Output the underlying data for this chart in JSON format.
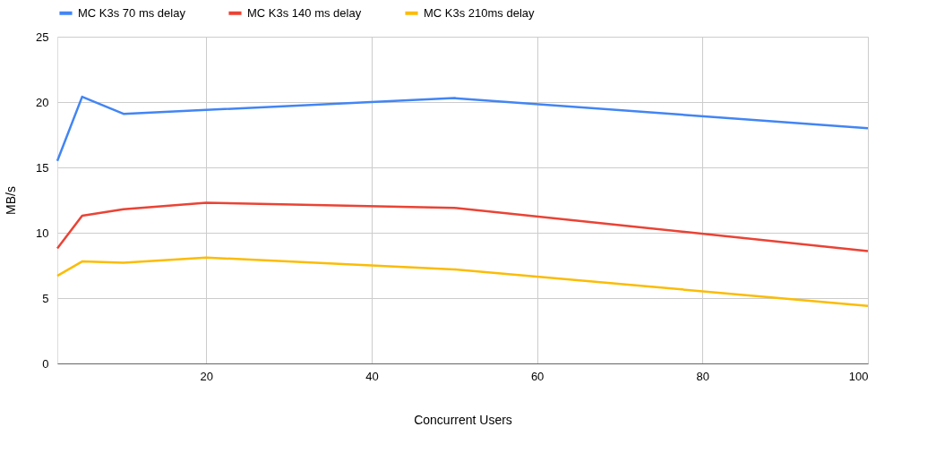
{
  "chart_data": {
    "type": "line",
    "xlabel": "Concurrent Users",
    "ylabel": "MB/s",
    "x": [
      2,
      5,
      10,
      20,
      50,
      100
    ],
    "series": [
      {
        "name": "MC K3s 70 ms delay",
        "color": "#4285f4",
        "values": [
          15.5,
          20.4,
          19.1,
          19.4,
          20.3,
          18.0
        ]
      },
      {
        "name": "MC K3s 140 ms delay",
        "color": "#ea4335",
        "values": [
          8.8,
          11.3,
          11.8,
          12.3,
          11.9,
          8.6
        ]
      },
      {
        "name": "MC K3s 210ms delay",
        "color": "#fbbc04",
        "values": [
          6.7,
          7.8,
          7.7,
          8.1,
          7.2,
          4.4
        ]
      }
    ],
    "xlim": [
      2,
      100
    ],
    "xticks": [
      20,
      40,
      60,
      80,
      100
    ],
    "ylim": [
      0,
      25
    ],
    "yticks": [
      0,
      5,
      10,
      15,
      20,
      25
    ],
    "grid": true,
    "legend": "top",
    "marker": "none",
    "line_style": "solid"
  }
}
